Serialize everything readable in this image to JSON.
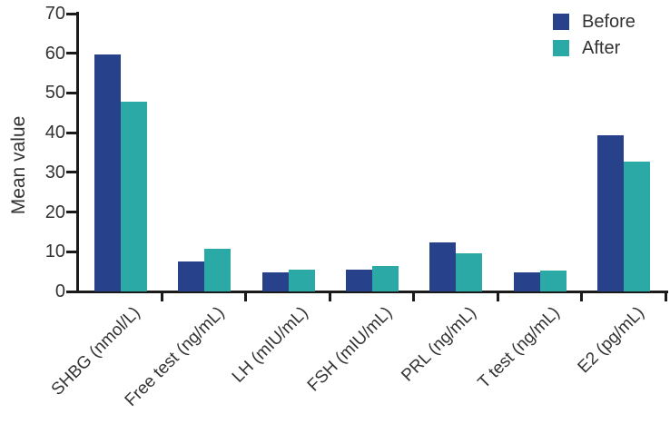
{
  "chart_data": {
    "type": "bar",
    "title": "",
    "xlabel": "",
    "ylabel": "Mean value",
    "ylim": [
      0,
      70
    ],
    "yticks": [
      0,
      10,
      20,
      30,
      40,
      50,
      60,
      70
    ],
    "grid": false,
    "legend_position": "top-right",
    "axis_color": "#1a1a1a",
    "text_color": "#333333",
    "categories": [
      "SHBG (nmol/L)",
      "Free test (ng/mL)",
      "LH (mIU/mL)",
      "FSH (mIU/mL)",
      "PRL (ng/mL)",
      "T test (ng/mL)",
      "E2 (pg/mL)"
    ],
    "series": [
      {
        "name": "Before",
        "color": "#27418a",
        "values": [
          59.6,
          7.6,
          4.9,
          5.5,
          12.3,
          4.9,
          39.4
        ]
      },
      {
        "name": "After",
        "color": "#2ba9a6",
        "values": [
          47.9,
          10.7,
          5.6,
          6.3,
          9.6,
          5.2,
          32.8
        ]
      }
    ]
  }
}
